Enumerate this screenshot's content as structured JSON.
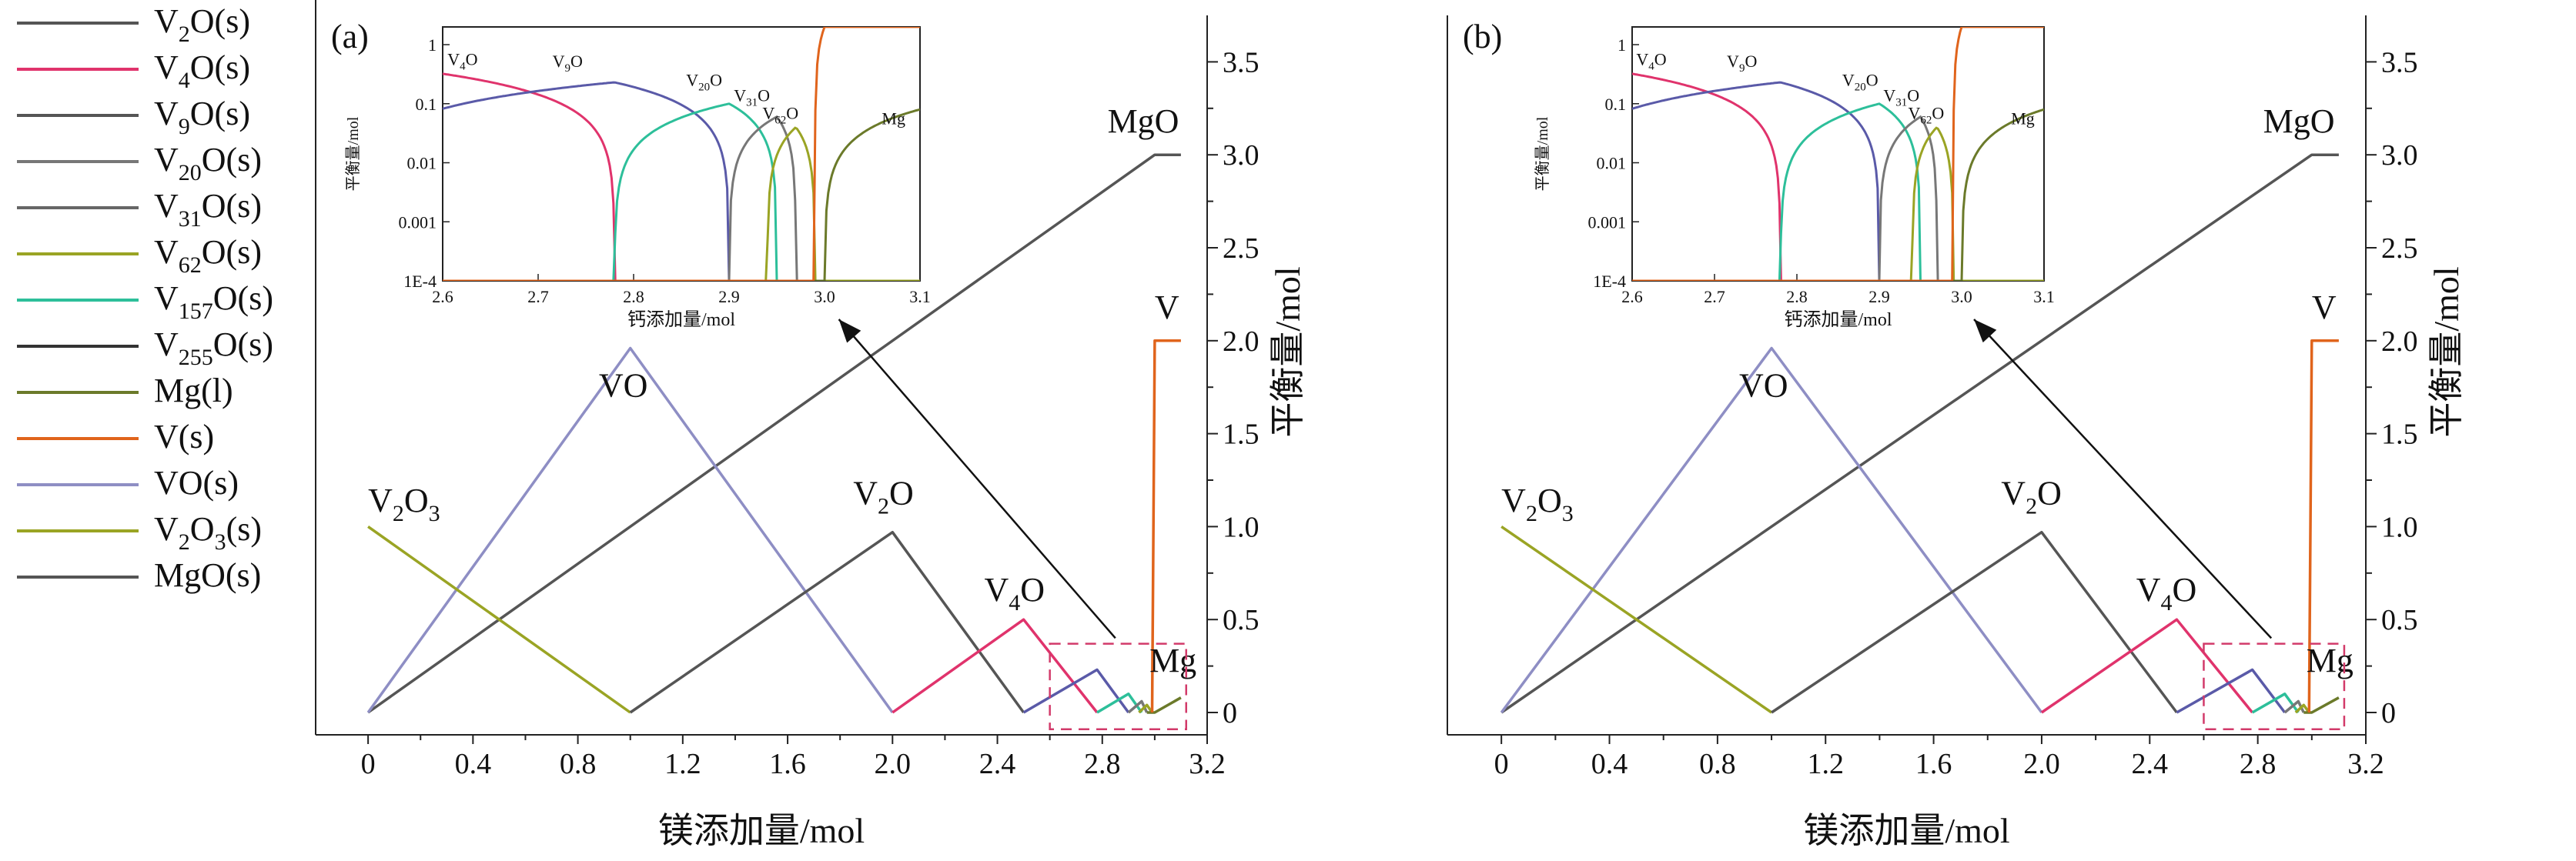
{
  "legend": [
    {
      "base": "V",
      "sub": "2",
      "rest": "O(s)",
      "color": "#555555"
    },
    {
      "base": "V",
      "sub": "4",
      "rest": "O(s)",
      "color": "#e0336c"
    },
    {
      "base": "V",
      "sub": "9",
      "rest": "O(s)",
      "color": "#555555"
    },
    {
      "base": "V",
      "sub": "20",
      "rest": "O(s)",
      "color": "#777777"
    },
    {
      "base": "V",
      "sub": "31",
      "rest": "O(s)",
      "color": "#666666"
    },
    {
      "base": "V",
      "sub": "62",
      "rest": "O(s)",
      "color": "#9aa424"
    },
    {
      "base": "V",
      "sub": "157",
      "rest": "O(s)",
      "color": "#2dbf9a"
    },
    {
      "base": "V",
      "sub": "255",
      "rest": "O(s)",
      "color": "#333333"
    },
    {
      "base": "Mg(l)",
      "sub": "",
      "rest": "",
      "color": "#6b7a2a"
    },
    {
      "base": "V(s)",
      "sub": "",
      "rest": "",
      "color": "#e0641c"
    },
    {
      "base": "VO(s)",
      "sub": "",
      "rest": "",
      "color": "#8e8ec4"
    },
    {
      "base": "V",
      "sub": "2",
      "rest": "O",
      "sub2": "3",
      "rest2": "(s)",
      "color": "#9aa424"
    },
    {
      "base": "MgO(s)",
      "sub": "",
      "rest": "",
      "color": "#555555"
    }
  ],
  "chart_data": [
    {
      "type": "line",
      "panel_label": "(a)",
      "xlabel": "镁添加量/mol",
      "ylabel": "平衡量/mol",
      "xlim": [
        -0.2,
        3.2
      ],
      "ylim": [
        -0.12,
        3.75
      ],
      "xticks": [
        "0",
        "0.4",
        "0.8",
        "1.2",
        "1.6",
        "2.0",
        "2.4",
        "2.8",
        "3.2"
      ],
      "yticks": [
        "0",
        "0.5",
        "1.0",
        "1.5",
        "2.0",
        "2.5",
        "3.0",
        "3.5"
      ],
      "series": [
        {
          "key": "MgO",
          "color": "#555555",
          "points": [
            [
              0,
              0
            ],
            [
              3.0,
              3.0
            ],
            [
              3.1,
              3.0
            ]
          ]
        },
        {
          "key": "VO",
          "color": "#8e8ec4",
          "points": [
            [
              0,
              0
            ],
            [
              1.0,
              1.96
            ],
            [
              2.0,
              0
            ]
          ]
        },
        {
          "key": "V2O3",
          "color": "#9aa424",
          "points": [
            [
              0,
              1.0
            ],
            [
              1.0,
              0
            ]
          ]
        },
        {
          "key": "V2O",
          "color": "#555555",
          "points": [
            [
              1.0,
              0
            ],
            [
              2.0,
              0.97
            ],
            [
              2.5,
              0
            ]
          ]
        },
        {
          "key": "V4O",
          "color": "#e0336c",
          "points": [
            [
              2.0,
              0
            ],
            [
              2.5,
              0.5
            ],
            [
              2.78,
              0
            ]
          ]
        },
        {
          "key": "V9O",
          "color": "#5a5aa8",
          "points": [
            [
              2.5,
              0
            ],
            [
              2.78,
              0.23
            ],
            [
              2.9,
              0
            ]
          ]
        },
        {
          "key": "V20O",
          "color": "#2dbf9a",
          "points": [
            [
              2.78,
              0
            ],
            [
              2.9,
              0.1
            ],
            [
              2.95,
              0
            ]
          ]
        },
        {
          "key": "V31O",
          "color": "#777777",
          "points": [
            [
              2.9,
              0
            ],
            [
              2.95,
              0.06
            ],
            [
              2.97,
              0
            ]
          ]
        },
        {
          "key": "V62O",
          "color": "#9aa424",
          "points": [
            [
              2.94,
              0
            ],
            [
              2.97,
              0.04
            ],
            [
              2.99,
              0
            ]
          ]
        },
        {
          "key": "Mg",
          "color": "#6b7a2a",
          "points": [
            [
              2.97,
              0
            ],
            [
              3.0,
              0
            ],
            [
              3.1,
              0.08
            ]
          ]
        },
        {
          "key": "V",
          "color": "#e0641c",
          "points": [
            [
              2.99,
              0
            ],
            [
              3.0,
              2.0
            ],
            [
              3.1,
              2.0
            ]
          ]
        }
      ],
      "labels": [
        {
          "base": "V",
          "sub": "2",
          "rest": "O",
          "sub2": "3",
          "x": 0.0,
          "y": 1.08
        },
        {
          "base": "VO",
          "sub": "",
          "rest": "",
          "x": 0.88,
          "y": 1.7
        },
        {
          "base": "V",
          "sub": "2",
          "rest": "O",
          "x": 1.85,
          "y": 1.12
        },
        {
          "base": "V",
          "sub": "4",
          "rest": "O",
          "x": 2.35,
          "y": 0.6
        },
        {
          "base": "MgO",
          "sub": "",
          "rest": "",
          "x": 2.82,
          "y": 3.12
        },
        {
          "base": "V",
          "sub": "",
          "rest": "",
          "x": 3.0,
          "y": 2.12
        },
        {
          "base": "Mg",
          "sub": "",
          "rest": "",
          "x": 2.98,
          "y": 0.22
        }
      ],
      "inset": {
        "xlim": [
          2.6,
          3.1
        ],
        "ylim_log10": [
          -4,
          0.3
        ],
        "xticks": [
          "2.6",
          "2.7",
          "2.8",
          "2.9",
          "3.0",
          "3.1"
        ],
        "yticks": [
          "1E-4",
          "0.001",
          "0.01",
          "0.1",
          "1"
        ],
        "xlabel": "钙添加量/mol",
        "ylabel": "平衡量/mol",
        "labels": [
          {
            "base": "V",
            "sub": "4",
            "rest": "O",
            "x": 2.605,
            "y": 0.45
          },
          {
            "base": "V",
            "sub": "9",
            "rest": "O",
            "x": 2.715,
            "y": 0.42
          },
          {
            "base": "V",
            "sub": "20",
            "rest": "O",
            "x": 2.855,
            "y": 0.2
          },
          {
            "base": "V",
            "sub": "31",
            "rest": "O",
            "x": 2.905,
            "y": 0.11
          },
          {
            "base": "V",
            "sub": "62",
            "rest": "O",
            "x": 2.935,
            "y": 0.055
          },
          {
            "base": "Mg",
            "sub": "",
            "rest": "",
            "x": 3.06,
            "y": 0.045
          }
        ]
      }
    },
    {
      "type": "line",
      "panel_label": "(b)",
      "xlabel": "镁添加量/mol",
      "ylabel": "平衡量/mol",
      "xlim": [
        -0.2,
        3.2
      ],
      "ylim": [
        -0.12,
        3.75
      ],
      "xticks": [
        "0",
        "0.4",
        "0.8",
        "1.2",
        "1.6",
        "2.0",
        "2.4",
        "2.8",
        "3.2"
      ],
      "yticks": [
        "0",
        "0.5",
        "1.0",
        "1.5",
        "2.0",
        "2.5",
        "3.0",
        "3.5"
      ],
      "series": [
        {
          "key": "MgO",
          "color": "#555555",
          "points": [
            [
              0,
              0
            ],
            [
              3.0,
              3.0
            ],
            [
              3.1,
              3.0
            ]
          ]
        },
        {
          "key": "VO",
          "color": "#8e8ec4",
          "points": [
            [
              0,
              0
            ],
            [
              1.0,
              1.96
            ],
            [
              2.0,
              0
            ]
          ]
        },
        {
          "key": "V2O3",
          "color": "#9aa424",
          "points": [
            [
              0,
              1.0
            ],
            [
              1.0,
              0
            ]
          ]
        },
        {
          "key": "V2O",
          "color": "#555555",
          "points": [
            [
              1.0,
              0
            ],
            [
              2.0,
              0.97
            ],
            [
              2.5,
              0
            ]
          ]
        },
        {
          "key": "V4O",
          "color": "#e0336c",
          "points": [
            [
              2.0,
              0
            ],
            [
              2.5,
              0.5
            ],
            [
              2.78,
              0
            ]
          ]
        },
        {
          "key": "V9O",
          "color": "#5a5aa8",
          "points": [
            [
              2.5,
              0
            ],
            [
              2.78,
              0.23
            ],
            [
              2.9,
              0
            ]
          ]
        },
        {
          "key": "V20O",
          "color": "#2dbf9a",
          "points": [
            [
              2.78,
              0
            ],
            [
              2.9,
              0.1
            ],
            [
              2.95,
              0
            ]
          ]
        },
        {
          "key": "V31O",
          "color": "#777777",
          "points": [
            [
              2.9,
              0
            ],
            [
              2.95,
              0.06
            ],
            [
              2.97,
              0
            ]
          ]
        },
        {
          "key": "V62O",
          "color": "#9aa424",
          "points": [
            [
              2.94,
              0
            ],
            [
              2.97,
              0.04
            ],
            [
              2.99,
              0
            ]
          ]
        },
        {
          "key": "Mg",
          "color": "#6b7a2a",
          "points": [
            [
              2.97,
              0
            ],
            [
              3.0,
              0
            ],
            [
              3.1,
              0.08
            ]
          ]
        },
        {
          "key": "V",
          "color": "#e0641c",
          "points": [
            [
              2.99,
              0
            ],
            [
              3.0,
              2.0
            ],
            [
              3.1,
              2.0
            ]
          ]
        }
      ],
      "labels": [
        {
          "base": "V",
          "sub": "2",
          "rest": "O",
          "sub2": "3",
          "x": 0.0,
          "y": 1.08
        },
        {
          "base": "VO",
          "sub": "",
          "rest": "",
          "x": 0.88,
          "y": 1.7
        },
        {
          "base": "V",
          "sub": "2",
          "rest": "O",
          "x": 1.85,
          "y": 1.12
        },
        {
          "base": "V",
          "sub": "4",
          "rest": "O",
          "x": 2.35,
          "y": 0.6
        },
        {
          "base": "MgO",
          "sub": "",
          "rest": "",
          "x": 2.82,
          "y": 3.12
        },
        {
          "base": "V",
          "sub": "",
          "rest": "",
          "x": 3.0,
          "y": 2.12
        },
        {
          "base": "Mg",
          "sub": "",
          "rest": "",
          "x": 2.98,
          "y": 0.22
        }
      ],
      "inset": {
        "xlim": [
          2.6,
          3.1
        ],
        "ylim_log10": [
          -4,
          0.3
        ],
        "xticks": [
          "2.6",
          "2.7",
          "2.8",
          "2.9",
          "3.0",
          "3.1"
        ],
        "yticks": [
          "1E-4",
          "0.001",
          "0.01",
          "0.1",
          "1"
        ],
        "xlabel": "钙添加量/mol",
        "ylabel": "平衡量/mol",
        "labels": [
          {
            "base": "V",
            "sub": "4",
            "rest": "O",
            "x": 2.605,
            "y": 0.45
          },
          {
            "base": "V",
            "sub": "9",
            "rest": "O",
            "x": 2.715,
            "y": 0.42
          },
          {
            "base": "V",
            "sub": "20",
            "rest": "O",
            "x": 2.855,
            "y": 0.2
          },
          {
            "base": "V",
            "sub": "31",
            "rest": "O",
            "x": 2.905,
            "y": 0.11
          },
          {
            "base": "V",
            "sub": "62",
            "rest": "O",
            "x": 2.935,
            "y": 0.055
          },
          {
            "base": "Mg",
            "sub": "",
            "rest": "",
            "x": 3.06,
            "y": 0.045
          }
        ]
      }
    }
  ]
}
